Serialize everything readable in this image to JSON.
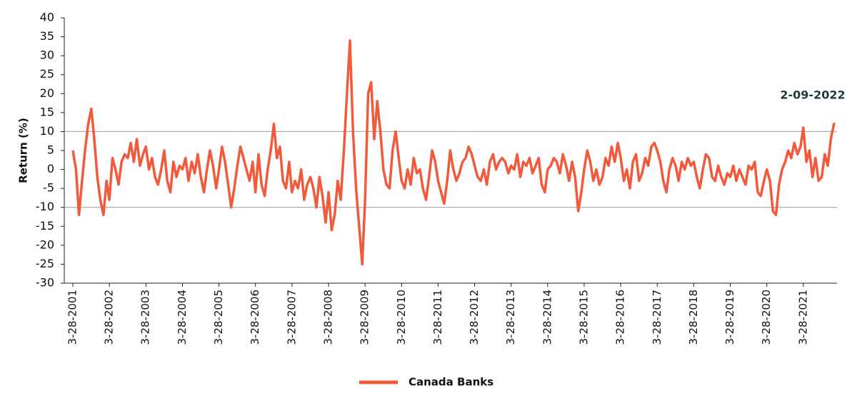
{
  "chart_data": {
    "type": "line",
    "y_label": "Return (%)",
    "annotation": "2-09-2022",
    "ylim": [
      -30,
      40
    ],
    "yticks": [
      -30,
      -25,
      -20,
      -15,
      -10,
      -5,
      0,
      5,
      10,
      15,
      20,
      25,
      30,
      35,
      40
    ],
    "hlines": [
      10,
      -10
    ],
    "xlim": [
      "2001-01-01",
      "2022-02-28"
    ],
    "xticks": [
      {
        "value": "2001-03-28",
        "label": "3-28-2001"
      },
      {
        "value": "2002-03-28",
        "label": "3-28-2002"
      },
      {
        "value": "2003-03-28",
        "label": "3-28-2003"
      },
      {
        "value": "2004-03-28",
        "label": "3-28-2004"
      },
      {
        "value": "2005-03-28",
        "label": "3-28-2005"
      },
      {
        "value": "2006-03-28",
        "label": "3-28-2006"
      },
      {
        "value": "2007-03-28",
        "label": "3-28-2007"
      },
      {
        "value": "2008-03-28",
        "label": "3-28-2008"
      },
      {
        "value": "2009-03-28",
        "label": "3-28-2009"
      },
      {
        "value": "2010-03-28",
        "label": "3-28-2010"
      },
      {
        "value": "2011-03-28",
        "label": "3-28-2011"
      },
      {
        "value": "2012-03-28",
        "label": "3-28-2012"
      },
      {
        "value": "2013-03-28",
        "label": "3-28-2013"
      },
      {
        "value": "2014-03-28",
        "label": "3-28-2014"
      },
      {
        "value": "2015-03-28",
        "label": "3-28-2015"
      },
      {
        "value": "2016-03-28",
        "label": "3-28-2016"
      },
      {
        "value": "2017-03-28",
        "label": "3-28-2017"
      },
      {
        "value": "2018-03-28",
        "label": "3-28-2018"
      },
      {
        "value": "2019-03-28",
        "label": "3-28-2019"
      },
      {
        "value": "2020-03-28",
        "label": "3-28-2020"
      },
      {
        "value": "2021-03-28",
        "label": "3-28-2021"
      }
    ],
    "x": [
      "2001-03-28",
      "2001-04-28",
      "2001-05-28",
      "2001-06-28",
      "2001-07-28",
      "2001-08-28",
      "2001-09-28",
      "2001-10-28",
      "2001-11-28",
      "2001-12-28",
      "2002-01-28",
      "2002-02-28",
      "2002-03-28",
      "2002-04-28",
      "2002-05-28",
      "2002-06-28",
      "2002-07-28",
      "2002-08-28",
      "2002-09-28",
      "2002-10-28",
      "2002-11-28",
      "2002-12-28",
      "2003-01-28",
      "2003-02-28",
      "2003-03-28",
      "2003-04-28",
      "2003-05-28",
      "2003-06-28",
      "2003-07-28",
      "2003-08-28",
      "2003-09-28",
      "2003-10-28",
      "2003-11-28",
      "2003-12-28",
      "2004-01-28",
      "2004-02-28",
      "2004-03-28",
      "2004-04-28",
      "2004-05-28",
      "2004-06-28",
      "2004-07-28",
      "2004-08-28",
      "2004-09-28",
      "2004-10-28",
      "2004-11-28",
      "2004-12-28",
      "2005-01-28",
      "2005-02-28",
      "2005-03-28",
      "2005-04-28",
      "2005-05-28",
      "2005-06-28",
      "2005-07-28",
      "2005-08-28",
      "2005-09-28",
      "2005-10-28",
      "2005-11-28",
      "2005-12-28",
      "2006-01-28",
      "2006-02-28",
      "2006-03-28",
      "2006-04-28",
      "2006-05-28",
      "2006-06-28",
      "2006-07-28",
      "2006-08-28",
      "2006-09-28",
      "2006-10-28",
      "2006-11-28",
      "2006-12-28",
      "2007-01-28",
      "2007-02-28",
      "2007-03-28",
      "2007-04-28",
      "2007-05-28",
      "2007-06-28",
      "2007-07-28",
      "2007-08-28",
      "2007-09-28",
      "2007-10-28",
      "2007-11-28",
      "2007-12-28",
      "2008-01-28",
      "2008-02-28",
      "2008-03-28",
      "2008-04-28",
      "2008-05-28",
      "2008-06-28",
      "2008-07-28",
      "2008-08-28",
      "2008-09-28",
      "2008-10-28",
      "2008-11-28",
      "2008-12-28",
      "2009-01-28",
      "2009-02-28",
      "2009-03-28",
      "2009-04-28",
      "2009-05-28",
      "2009-06-28",
      "2009-07-28",
      "2009-08-28",
      "2009-09-28",
      "2009-10-28",
      "2009-11-28",
      "2009-12-28",
      "2010-01-28",
      "2010-02-28",
      "2010-03-28",
      "2010-04-28",
      "2010-05-28",
      "2010-06-28",
      "2010-07-28",
      "2010-08-28",
      "2010-09-28",
      "2010-10-28",
      "2010-11-28",
      "2010-12-28",
      "2011-01-28",
      "2011-02-28",
      "2011-03-28",
      "2011-04-28",
      "2011-05-28",
      "2011-06-28",
      "2011-07-28",
      "2011-08-28",
      "2011-09-28",
      "2011-10-28",
      "2011-11-28",
      "2011-12-28",
      "2012-01-28",
      "2012-02-28",
      "2012-03-28",
      "2012-04-28",
      "2012-05-28",
      "2012-06-28",
      "2012-07-28",
      "2012-08-28",
      "2012-09-28",
      "2012-10-28",
      "2012-11-28",
      "2012-12-28",
      "2013-01-28",
      "2013-02-28",
      "2013-03-28",
      "2013-04-28",
      "2013-05-28",
      "2013-06-28",
      "2013-07-28",
      "2013-08-28",
      "2013-09-28",
      "2013-10-28",
      "2013-11-28",
      "2013-12-28",
      "2014-01-28",
      "2014-02-28",
      "2014-03-28",
      "2014-04-28",
      "2014-05-28",
      "2014-06-28",
      "2014-07-28",
      "2014-08-28",
      "2014-09-28",
      "2014-10-28",
      "2014-11-28",
      "2014-12-28",
      "2015-01-28",
      "2015-02-28",
      "2015-03-28",
      "2015-04-28",
      "2015-05-28",
      "2015-06-28",
      "2015-07-28",
      "2015-08-28",
      "2015-09-28",
      "2015-10-28",
      "2015-11-28",
      "2015-12-28",
      "2016-01-28",
      "2016-02-28",
      "2016-03-28",
      "2016-04-28",
      "2016-05-28",
      "2016-06-28",
      "2016-07-28",
      "2016-08-28",
      "2016-09-28",
      "2016-10-28",
      "2016-11-28",
      "2016-12-28",
      "2017-01-28",
      "2017-02-28",
      "2017-03-28",
      "2017-04-28",
      "2017-05-28",
      "2017-06-28",
      "2017-07-28",
      "2017-08-28",
      "2017-09-28",
      "2017-10-28",
      "2017-11-28",
      "2017-12-28",
      "2018-01-28",
      "2018-02-28",
      "2018-03-28",
      "2018-04-28",
      "2018-05-28",
      "2018-06-28",
      "2018-07-28",
      "2018-08-28",
      "2018-09-28",
      "2018-10-28",
      "2018-11-28",
      "2018-12-28",
      "2019-01-28",
      "2019-02-28",
      "2019-03-28",
      "2019-04-28",
      "2019-05-28",
      "2019-06-28",
      "2019-07-28",
      "2019-08-28",
      "2019-09-28",
      "2019-10-28",
      "2019-11-28",
      "2019-12-28",
      "2020-01-28",
      "2020-02-28",
      "2020-03-28",
      "2020-04-28",
      "2020-05-28",
      "2020-06-28",
      "2020-07-28",
      "2020-08-28",
      "2020-09-28",
      "2020-10-28",
      "2020-11-28",
      "2020-12-28",
      "2021-01-28",
      "2021-02-28",
      "2021-03-28",
      "2021-04-28",
      "2021-05-28",
      "2021-06-28",
      "2021-07-28",
      "2021-08-28",
      "2021-09-28",
      "2021-10-28",
      "2021-11-28",
      "2021-12-28",
      "2022-01-28",
      "2022-02-09"
    ],
    "series": [
      {
        "name": "Canada Banks",
        "color": "#f15a3a",
        "values": [
          5,
          0,
          -12,
          -3,
          5,
          12,
          16,
          8,
          -2,
          -8,
          -12,
          -3,
          -8,
          3,
          0,
          -4,
          2,
          4,
          3,
          7,
          2,
          8,
          1,
          4,
          6,
          0,
          3,
          -2,
          -4,
          0,
          5,
          -3,
          -6,
          2,
          -2,
          1,
          0,
          3,
          -3,
          2,
          -1,
          4,
          -2,
          -6,
          0,
          5,
          1,
          -5,
          0,
          6,
          2,
          -4,
          -10,
          -5,
          1,
          6,
          3,
          0,
          -3,
          2,
          -6,
          4,
          -4,
          -7,
          0,
          5,
          12,
          3,
          6,
          -3,
          -5,
          2,
          -6,
          -3,
          -5,
          0,
          -8,
          -4,
          -2,
          -5,
          -10,
          -2,
          -7,
          -14,
          -6,
          -16,
          -12,
          -3,
          -8,
          5,
          20,
          34,
          10,
          -5,
          -15,
          -25,
          -8,
          20,
          23,
          8,
          18,
          10,
          0,
          -4,
          -5,
          5,
          10,
          3,
          -3,
          -5,
          0,
          -4,
          3,
          -1,
          0,
          -5,
          -8,
          -2,
          5,
          2,
          -3,
          -6,
          -9,
          -3,
          5,
          0,
          -3,
          -1,
          2,
          3,
          6,
          4,
          1,
          -2,
          -3,
          0,
          -4,
          2,
          4,
          0,
          2,
          3,
          2,
          -1,
          1,
          0,
          4,
          -2,
          2,
          1,
          3,
          -1,
          1,
          3,
          -4,
          -6,
          0,
          1,
          3,
          2,
          -1,
          4,
          1,
          -3,
          2,
          -2,
          -11,
          -6,
          0,
          5,
          2,
          -3,
          0,
          -4,
          -2,
          3,
          1,
          6,
          2,
          7,
          3,
          -3,
          0,
          -5,
          2,
          4,
          -3,
          -1,
          3,
          1,
          6,
          7,
          5,
          2,
          -3,
          -6,
          0,
          3,
          1,
          -3,
          2,
          0,
          3,
          1,
          2,
          -2,
          -5,
          0,
          4,
          3,
          -2,
          -3,
          1,
          -2,
          -4,
          -1,
          -2,
          1,
          -3,
          0,
          -2,
          -4,
          1,
          0,
          2,
          -6,
          -7,
          -3,
          0,
          -3,
          -11,
          -12,
          -4,
          0,
          2,
          5,
          3,
          7,
          4,
          6,
          11,
          2,
          5,
          -2,
          3,
          -3,
          -2,
          4,
          1,
          8,
          12,
          12
        ]
      }
    ]
  }
}
